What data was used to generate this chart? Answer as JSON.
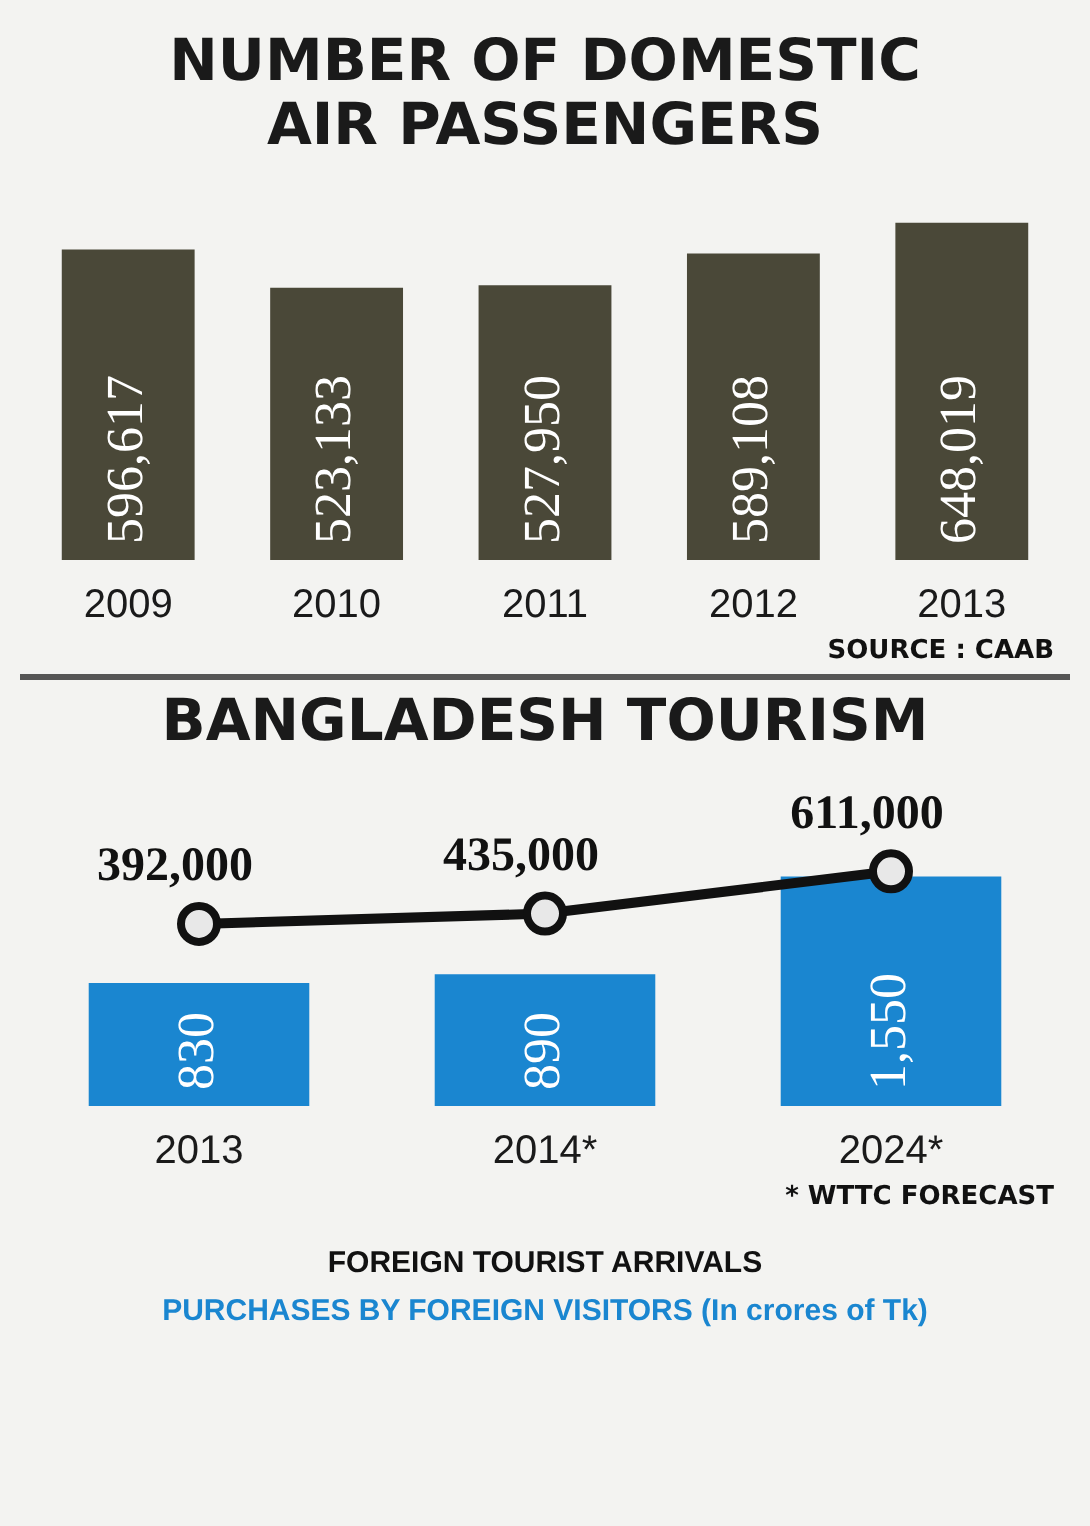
{
  "chart_data": [
    {
      "type": "bar",
      "title": "NUMBER OF DOMESTIC AIR PASSENGERS",
      "categories": [
        "2009",
        "2010",
        "2011",
        "2012",
        "2013"
      ],
      "values": [
        596617,
        523133,
        527950,
        589108,
        648019
      ],
      "value_labels": [
        "596,617",
        "523,133",
        "527,950",
        "589,108",
        "648,019"
      ],
      "color": "#4a4838",
      "annotations": [
        "SOURCE : CAAB"
      ]
    },
    {
      "type": "bar",
      "title": "BANGLADESH TOURISM",
      "categories": [
        "2013",
        "2014*",
        "2024*"
      ],
      "series": [
        {
          "name": "FOREIGN TOURIST ARRIVALS",
          "type": "line",
          "axis": "y2",
          "color": "#111111",
          "values": [
            392000,
            435000,
            611000
          ],
          "value_labels": [
            "392,000",
            "435,000",
            "611,000"
          ]
        },
        {
          "name": "PURCHASES BY FOREIGN VISITORS (In crores of Tk)",
          "color": "#1a86d0",
          "values": [
            830,
            890,
            1550
          ],
          "value_labels": [
            "830",
            "890",
            "1,550"
          ]
        }
      ],
      "marker": "circle",
      "legend": "bottom",
      "annotations": [
        "* WTTC FORECAST"
      ]
    }
  ]
}
